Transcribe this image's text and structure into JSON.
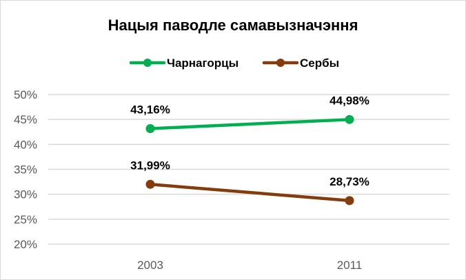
{
  "chart_data": {
    "type": "line",
    "title": "Нацыя паводле самавызначэння",
    "categories": [
      "2003",
      "2011"
    ],
    "series": [
      {
        "name": "Чарнагорцы",
        "values": [
          43.16,
          44.98
        ],
        "labels": [
          "43,16%",
          "44,98%"
        ],
        "color": "#00B050"
      },
      {
        "name": "Сербы",
        "values": [
          31.99,
          28.73
        ],
        "labels": [
          "31,99%",
          "28,73%"
        ],
        "color": "#843C0C"
      }
    ],
    "ylim": [
      20,
      50
    ],
    "yticks": [
      "20%",
      "25%",
      "30%",
      "35%",
      "40%",
      "45%",
      "50%"
    ],
    "grid": true,
    "legend": "top"
  }
}
